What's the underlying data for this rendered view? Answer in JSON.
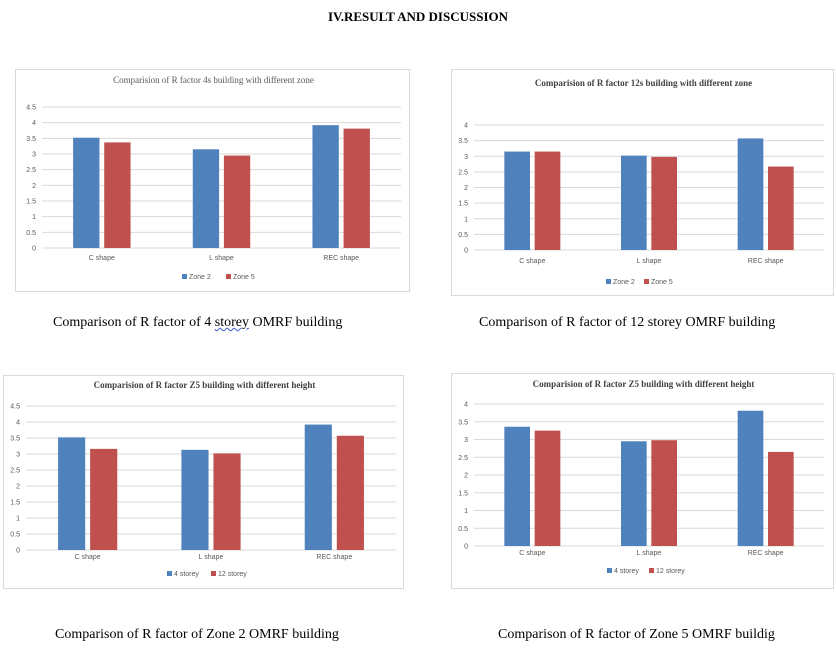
{
  "heading": "IV.RESULT AND DISCUSSION",
  "colors": {
    "series1": "#4f81bd",
    "series2": "#c0504d",
    "grid": "#d9d9d9",
    "axisText": "#595959"
  },
  "chart_data": [
    {
      "type": "bar",
      "title": "Comparision  of  R factor 4s building  with  different zone",
      "categories": [
        "C shape",
        "L shape",
        "REC shape"
      ],
      "series": [
        {
          "name": "Zone 2",
          "values": [
            3.52,
            3.15,
            3.92
          ]
        },
        {
          "name": "Zone 5",
          "values": [
            3.37,
            2.95,
            3.81
          ]
        }
      ],
      "ylim": [
        0,
        4.5
      ],
      "yticks": [
        "0",
        "0.5",
        "1",
        "1.5",
        "2",
        "2.5",
        "3",
        "3.5",
        "4",
        "4.5"
      ],
      "grid": true,
      "legend": "bottom"
    },
    {
      "type": "bar",
      "title": "Comparision  of  R factor 12s building  with  different zone",
      "categories": [
        "C shape",
        "L shape",
        "REC shape"
      ],
      "series": [
        {
          "name": "Zone 2",
          "values": [
            3.15,
            3.02,
            3.57
          ]
        },
        {
          "name": "Zone 5",
          "values": [
            3.15,
            2.98,
            2.67
          ]
        }
      ],
      "ylim": [
        0,
        4
      ],
      "yticks": [
        "0",
        "0.5",
        "1",
        "1.5",
        "2",
        "2.5",
        "3",
        "3.5",
        "4"
      ],
      "grid": true,
      "legend": "bottom"
    },
    {
      "type": "bar",
      "title": "Comparision  of  R factor Z5 building  with  different height",
      "categories": [
        "C shape",
        "L shape",
        "REC shape"
      ],
      "series": [
        {
          "name": "4 storey",
          "values": [
            3.52,
            3.13,
            3.92
          ]
        },
        {
          "name": "12 storey",
          "values": [
            3.16,
            3.02,
            3.57
          ]
        }
      ],
      "ylim": [
        0,
        4.5
      ],
      "yticks": [
        "0",
        "0.5",
        "1",
        "1.5",
        "2",
        "2.5",
        "3",
        "3.5",
        "4",
        "4.5"
      ],
      "grid": true,
      "legend": "bottom"
    },
    {
      "type": "bar",
      "title": "Comparision  of  R factor Z5 building  with  different height",
      "categories": [
        "C shape",
        "L shape",
        "REC shape"
      ],
      "series": [
        {
          "name": "4 storey",
          "values": [
            3.36,
            2.95,
            3.81
          ]
        },
        {
          "name": "12 storey",
          "values": [
            3.25,
            2.98,
            2.65
          ]
        }
      ],
      "ylim": [
        0,
        4
      ],
      "yticks": [
        "0",
        "0.5",
        "1",
        "1.5",
        "2",
        "2.5",
        "3",
        "3.5",
        "4"
      ],
      "grid": true,
      "legend": "bottom"
    }
  ],
  "captions": [
    {
      "before": "Comparison of R factor of 4 ",
      "flagged": "storey",
      "after": "  OMRF building"
    },
    {
      "before": "Comparison of R factor of 12 storey OMRF building",
      "flagged": "",
      "after": ""
    },
    {
      "before": "Comparison of R factor of  Zone 2 OMRF building",
      "flagged": "",
      "after": ""
    },
    {
      "before": "Comparison of R factor of Zone 5 OMRF buildig",
      "flagged": "",
      "after": ""
    }
  ]
}
